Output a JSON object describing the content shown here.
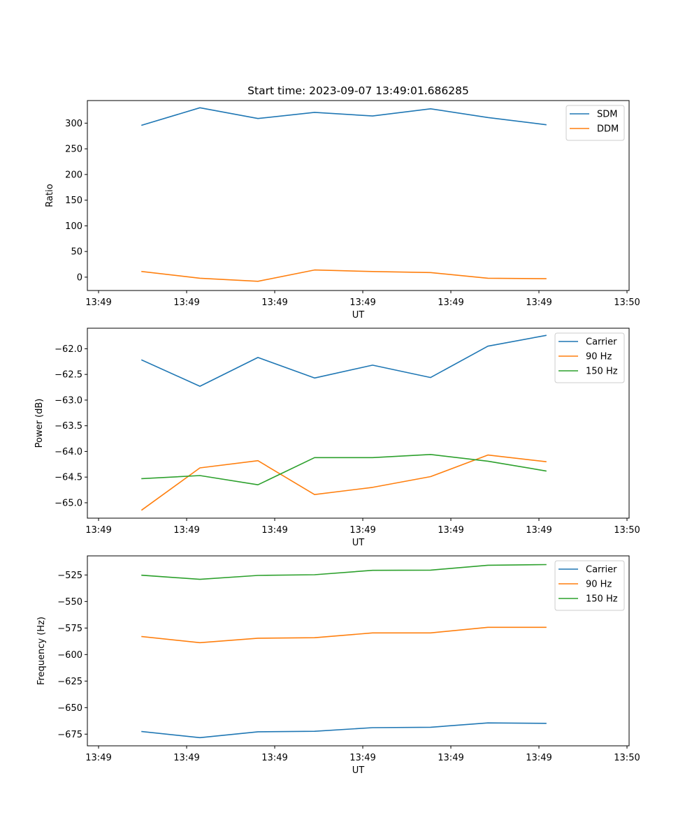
{
  "chart_data": [
    {
      "type": "line",
      "title": "Start time: 2023-09-07 13:49:01.686285",
      "xlabel": "UT",
      "ylabel": "Ratio",
      "x_tick_labels": [
        "13:49",
        "13:49",
        "13:49",
        "13:49",
        "13:49",
        "13:49",
        "13:50"
      ],
      "ylim": [
        -26,
        344
      ],
      "yticks": [
        0,
        50,
        100,
        150,
        200,
        250,
        300
      ],
      "ytick_labels": [
        "0",
        "50",
        "100",
        "150",
        "200",
        "250",
        "300"
      ],
      "legend_position": "top-right",
      "x": [
        1,
        2,
        3,
        4,
        5,
        6,
        7,
        8
      ],
      "series": [
        {
          "name": "SDM",
          "color": "#1f77b4",
          "values": [
            296,
            330,
            309,
            321,
            314,
            328,
            311,
            297
          ]
        },
        {
          "name": "DDM",
          "color": "#ff7f0e",
          "values": [
            11,
            -2,
            -8,
            14,
            11,
            9,
            -2,
            -3
          ]
        }
      ]
    },
    {
      "type": "line",
      "title": "",
      "xlabel": "UT",
      "ylabel": "Power (dB)",
      "x_tick_labels": [
        "13:49",
        "13:49",
        "13:49",
        "13:49",
        "13:49",
        "13:49",
        "13:50"
      ],
      "ylim": [
        -65.3,
        -61.6
      ],
      "yticks": [
        -65.0,
        -64.5,
        -64.0,
        -63.5,
        -63.0,
        -62.5,
        -62.0
      ],
      "ytick_labels": [
        "−65.0",
        "−64.5",
        "−64.0",
        "−63.5",
        "−63.0",
        "−62.5",
        "−62.0"
      ],
      "legend_position": "top-right",
      "x": [
        1,
        2,
        3,
        4,
        5,
        6,
        7,
        8
      ],
      "series": [
        {
          "name": "Carrier",
          "color": "#1f77b4",
          "values": [
            -62.22,
            -62.73,
            -62.17,
            -62.57,
            -62.32,
            -62.56,
            -61.95,
            -61.74
          ]
        },
        {
          "name": "90 Hz",
          "color": "#ff7f0e",
          "values": [
            -65.14,
            -64.32,
            -64.18,
            -64.84,
            -64.7,
            -64.49,
            -64.07,
            -64.2
          ]
        },
        {
          "name": "150 Hz",
          "color": "#2ca02c",
          "values": [
            -64.53,
            -64.47,
            -64.65,
            -64.12,
            -64.12,
            -64.06,
            -64.19,
            -64.38
          ]
        }
      ]
    },
    {
      "type": "line",
      "title": "",
      "xlabel": "UT",
      "ylabel": "Frequency (Hz)",
      "x_tick_labels": [
        "13:49",
        "13:49",
        "13:49",
        "13:49",
        "13:49",
        "13:49",
        "13:50"
      ],
      "ylim": [
        -686,
        -507
      ],
      "yticks": [
        -675,
        -650,
        -625,
        -600,
        -575,
        -550,
        -525
      ],
      "ytick_labels": [
        "−675",
        "−650",
        "−625",
        "−600",
        "−575",
        "−550",
        "−525"
      ],
      "legend_position": "top-right",
      "x": [
        1,
        2,
        3,
        4,
        5,
        6,
        7,
        8
      ],
      "series": [
        {
          "name": "Carrier",
          "color": "#1f77b4",
          "values": [
            -672.6,
            -678.3,
            -672.8,
            -672.3,
            -668.9,
            -668.5,
            -664.4,
            -664.8
          ]
        },
        {
          "name": "90 Hz",
          "color": "#ff7f0e",
          "values": [
            -583.1,
            -588.8,
            -584.6,
            -584.1,
            -579.6,
            -579.6,
            -574.3,
            -574.3
          ]
        },
        {
          "name": "150 Hz",
          "color": "#2ca02c",
          "values": [
            -525.2,
            -529.1,
            -525.4,
            -524.8,
            -520.6,
            -520.4,
            -515.8,
            -515.2
          ]
        }
      ]
    }
  ]
}
